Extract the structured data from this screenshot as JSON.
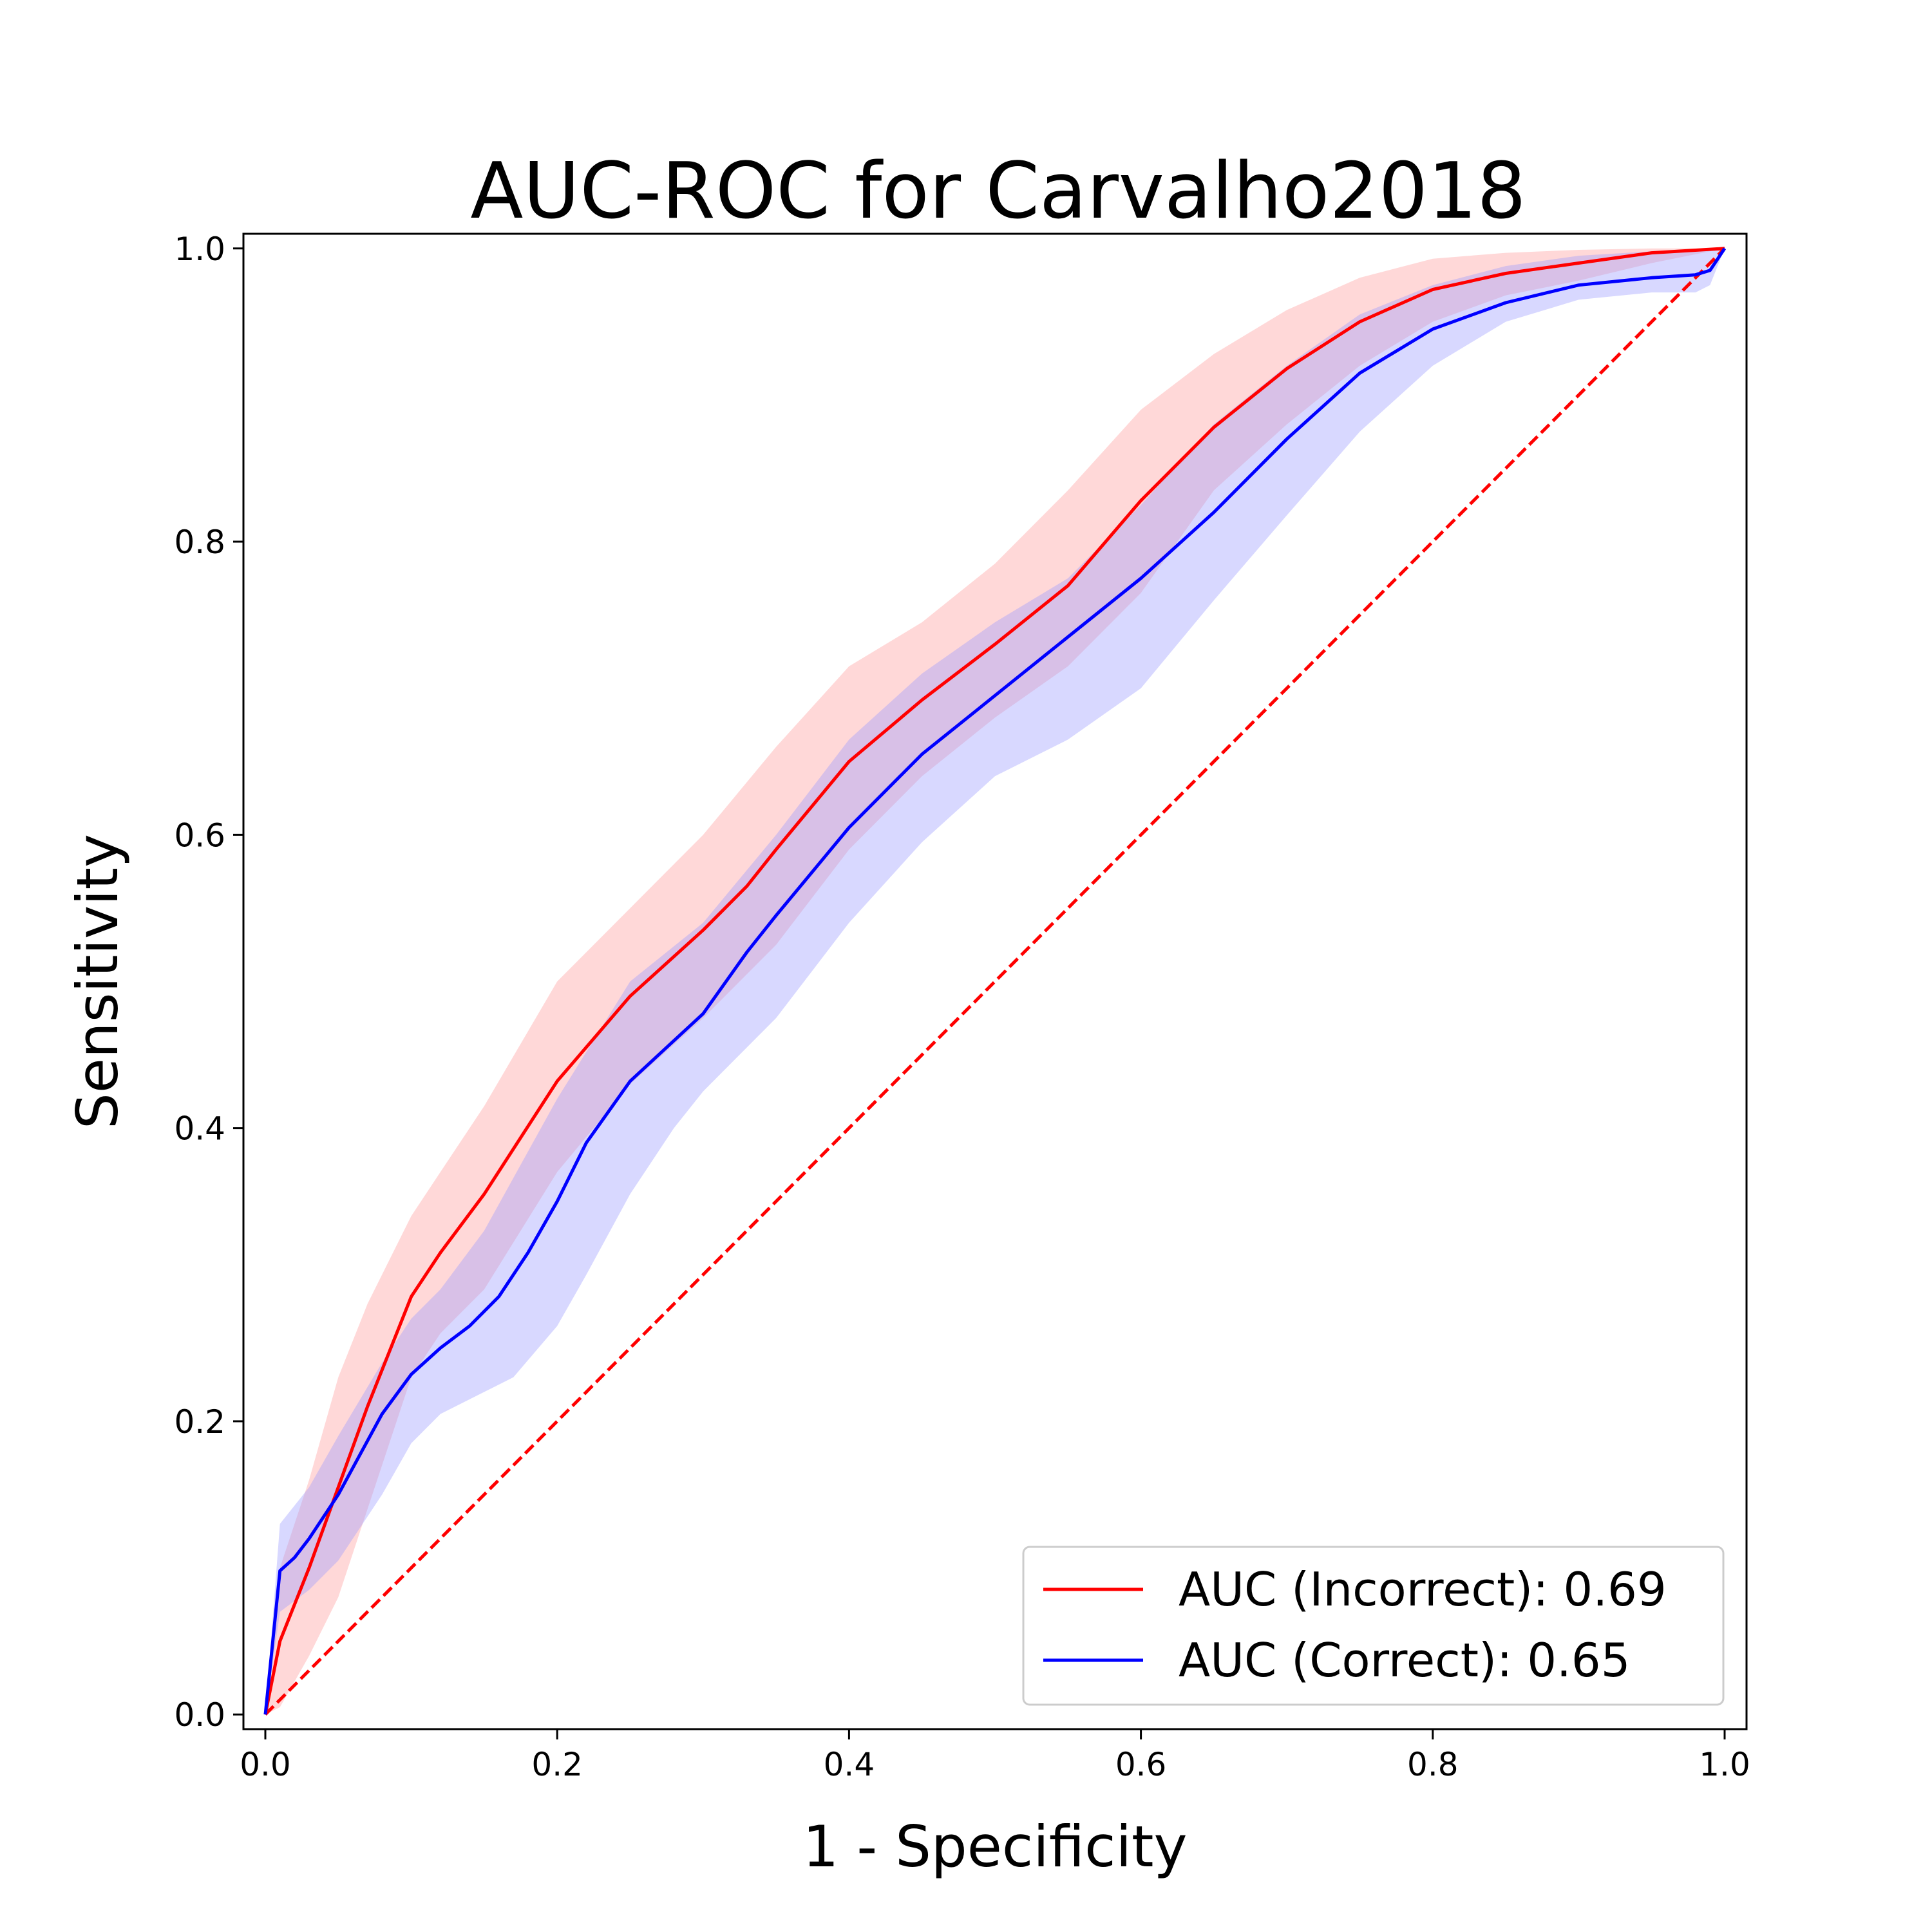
{
  "chart_data": {
    "type": "line",
    "title": "AUC-ROC for Carvalho2018",
    "xlabel": "1 - Specificity",
    "ylabel": "Sensitivity",
    "xlim": [
      -0.015,
      1.015
    ],
    "ylim": [
      -0.01,
      1.01
    ],
    "xticks": [
      "0.0",
      "0.2",
      "0.4",
      "0.6",
      "0.8",
      "1.0"
    ],
    "yticks": [
      "0.0",
      "0.2",
      "0.4",
      "0.6",
      "0.8",
      "1.0"
    ],
    "grid": false,
    "legend_position": "lower-right",
    "series": [
      {
        "name": "AUC  (Incorrect): 0.69",
        "color": "#ff0000",
        "band_color": "#ff9999",
        "points": [
          [
            0,
            0
          ],
          [
            0.01,
            0.05
          ],
          [
            0.03,
            0.1
          ],
          [
            0.05,
            0.155
          ],
          [
            0.07,
            0.21
          ],
          [
            0.09,
            0.26
          ],
          [
            0.1,
            0.285
          ],
          [
            0.12,
            0.315
          ],
          [
            0.15,
            0.355
          ],
          [
            0.2,
            0.432
          ],
          [
            0.25,
            0.49
          ],
          [
            0.3,
            0.535
          ],
          [
            0.33,
            0.565
          ],
          [
            0.35,
            0.59
          ],
          [
            0.4,
            0.65
          ],
          [
            0.45,
            0.692
          ],
          [
            0.5,
            0.73
          ],
          [
            0.55,
            0.77
          ],
          [
            0.6,
            0.828
          ],
          [
            0.65,
            0.878
          ],
          [
            0.7,
            0.918
          ],
          [
            0.75,
            0.95
          ],
          [
            0.8,
            0.972
          ],
          [
            0.85,
            0.983
          ],
          [
            0.9,
            0.99
          ],
          [
            0.95,
            0.997
          ],
          [
            1,
            1
          ]
        ],
        "upper": [
          [
            0,
            0
          ],
          [
            0.01,
            0.1
          ],
          [
            0.03,
            0.16
          ],
          [
            0.05,
            0.23
          ],
          [
            0.07,
            0.28
          ],
          [
            0.09,
            0.32
          ],
          [
            0.1,
            0.34
          ],
          [
            0.12,
            0.37
          ],
          [
            0.15,
            0.415
          ],
          [
            0.2,
            0.5
          ],
          [
            0.25,
            0.55
          ],
          [
            0.3,
            0.6
          ],
          [
            0.35,
            0.66
          ],
          [
            0.4,
            0.715
          ],
          [
            0.45,
            0.745
          ],
          [
            0.5,
            0.785
          ],
          [
            0.55,
            0.835
          ],
          [
            0.6,
            0.89
          ],
          [
            0.65,
            0.928
          ],
          [
            0.7,
            0.958
          ],
          [
            0.75,
            0.98
          ],
          [
            0.8,
            0.993
          ],
          [
            0.85,
            0.997
          ],
          [
            0.9,
            0.999
          ],
          [
            0.95,
            1
          ],
          [
            1,
            1
          ]
        ],
        "lower": [
          [
            0,
            0
          ],
          [
            0.01,
            0.005
          ],
          [
            0.03,
            0.04
          ],
          [
            0.05,
            0.08
          ],
          [
            0.07,
            0.14
          ],
          [
            0.09,
            0.2
          ],
          [
            0.1,
            0.23
          ],
          [
            0.12,
            0.26
          ],
          [
            0.15,
            0.29
          ],
          [
            0.2,
            0.37
          ],
          [
            0.25,
            0.43
          ],
          [
            0.3,
            0.475
          ],
          [
            0.35,
            0.525
          ],
          [
            0.4,
            0.59
          ],
          [
            0.45,
            0.64
          ],
          [
            0.5,
            0.68
          ],
          [
            0.55,
            0.715
          ],
          [
            0.6,
            0.765
          ],
          [
            0.65,
            0.835
          ],
          [
            0.7,
            0.88
          ],
          [
            0.75,
            0.92
          ],
          [
            0.8,
            0.95
          ],
          [
            0.85,
            0.968
          ],
          [
            0.9,
            0.978
          ],
          [
            0.95,
            0.99
          ],
          [
            1,
            1
          ]
        ]
      },
      {
        "name": "AUC  (Correct): 0.65",
        "color": "#0000ff",
        "band_color": "#9999ff",
        "points": [
          [
            0,
            0
          ],
          [
            0.01,
            0.098
          ],
          [
            0.02,
            0.107
          ],
          [
            0.03,
            0.12
          ],
          [
            0.05,
            0.15
          ],
          [
            0.08,
            0.205
          ],
          [
            0.1,
            0.232
          ],
          [
            0.12,
            0.25
          ],
          [
            0.14,
            0.265
          ],
          [
            0.16,
            0.285
          ],
          [
            0.18,
            0.315
          ],
          [
            0.2,
            0.35
          ],
          [
            0.22,
            0.39
          ],
          [
            0.25,
            0.432
          ],
          [
            0.3,
            0.478
          ],
          [
            0.33,
            0.52
          ],
          [
            0.35,
            0.545
          ],
          [
            0.4,
            0.605
          ],
          [
            0.45,
            0.655
          ],
          [
            0.5,
            0.695
          ],
          [
            0.55,
            0.735
          ],
          [
            0.6,
            0.775
          ],
          [
            0.65,
            0.82
          ],
          [
            0.7,
            0.87
          ],
          [
            0.75,
            0.915
          ],
          [
            0.8,
            0.945
          ],
          [
            0.85,
            0.963
          ],
          [
            0.9,
            0.975
          ],
          [
            0.95,
            0.98
          ],
          [
            0.98,
            0.982
          ],
          [
            0.99,
            0.985
          ],
          [
            1,
            1
          ]
        ],
        "upper": [
          [
            0,
            0
          ],
          [
            0.01,
            0.13
          ],
          [
            0.03,
            0.155
          ],
          [
            0.05,
            0.19
          ],
          [
            0.08,
            0.24
          ],
          [
            0.1,
            0.27
          ],
          [
            0.12,
            0.29
          ],
          [
            0.15,
            0.33
          ],
          [
            0.2,
            0.42
          ],
          [
            0.25,
            0.5
          ],
          [
            0.3,
            0.54
          ],
          [
            0.35,
            0.6
          ],
          [
            0.4,
            0.665
          ],
          [
            0.45,
            0.71
          ],
          [
            0.5,
            0.745
          ],
          [
            0.55,
            0.775
          ],
          [
            0.6,
            0.825
          ],
          [
            0.65,
            0.88
          ],
          [
            0.7,
            0.92
          ],
          [
            0.75,
            0.955
          ],
          [
            0.8,
            0.975
          ],
          [
            0.85,
            0.988
          ],
          [
            0.9,
            0.995
          ],
          [
            0.95,
            0.998
          ],
          [
            1,
            1
          ]
        ],
        "lower": [
          [
            0,
            0
          ],
          [
            0.01,
            0.07
          ],
          [
            0.03,
            0.085
          ],
          [
            0.05,
            0.105
          ],
          [
            0.08,
            0.15
          ],
          [
            0.1,
            0.185
          ],
          [
            0.12,
            0.205
          ],
          [
            0.15,
            0.22
          ],
          [
            0.17,
            0.23
          ],
          [
            0.2,
            0.265
          ],
          [
            0.22,
            0.3
          ],
          [
            0.25,
            0.355
          ],
          [
            0.28,
            0.4
          ],
          [
            0.3,
            0.425
          ],
          [
            0.35,
            0.475
          ],
          [
            0.4,
            0.54
          ],
          [
            0.45,
            0.595
          ],
          [
            0.5,
            0.64
          ],
          [
            0.55,
            0.665
          ],
          [
            0.6,
            0.7
          ],
          [
            0.65,
            0.76
          ],
          [
            0.7,
            0.818
          ],
          [
            0.75,
            0.875
          ],
          [
            0.8,
            0.92
          ],
          [
            0.85,
            0.95
          ],
          [
            0.9,
            0.965
          ],
          [
            0.95,
            0.97
          ],
          [
            0.98,
            0.97
          ],
          [
            0.99,
            0.975
          ],
          [
            1,
            1
          ]
        ]
      }
    ],
    "reference_line": {
      "style": "dashed",
      "color": "#ff0000",
      "points": [
        [
          0,
          0
        ],
        [
          1,
          1
        ]
      ]
    }
  }
}
